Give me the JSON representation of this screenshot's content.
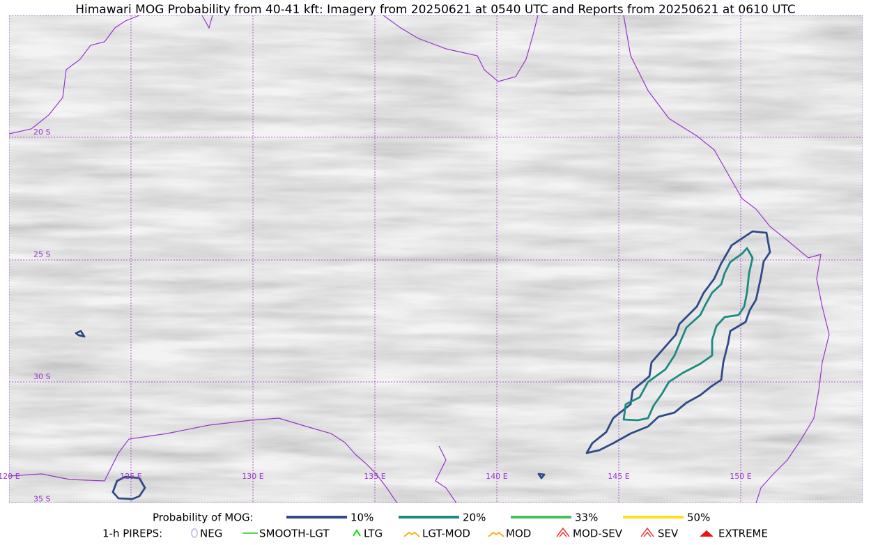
{
  "title": "Himawari MOG Probability from 40-41 kft: Imagery from 20250621 at 0540 UTC and Reports from 20250621 at 0610 UTC",
  "map": {
    "lat_labels": [
      "20 S",
      "25 S",
      "30 S",
      "35 S"
    ],
    "lon_labels": [
      "120 E",
      "125 E",
      "130 E",
      "135 E",
      "140 E",
      "145 E",
      "150 E"
    ]
  },
  "mog_legend": {
    "label": "Probability of MOG:",
    "items": [
      {
        "label": "10%",
        "color": "#2e4a87"
      },
      {
        "label": "20%",
        "color": "#1b8a80"
      },
      {
        "label": "33%",
        "color": "#45c05a"
      },
      {
        "label": "50%",
        "color": "#ffe016"
      }
    ]
  },
  "pirep_legend": {
    "label": "1-h PIREPS:",
    "items": [
      {
        "label": "NEG",
        "color": "#c4c4f2"
      },
      {
        "label": "SMOOTH-LGT",
        "color": "#22cc22"
      },
      {
        "label": "LTG",
        "color": "#11dd11"
      },
      {
        "label": "LGT-MOD",
        "color": "#f5b21a"
      },
      {
        "label": "MOD",
        "color": "#f5b21a"
      },
      {
        "label": "MOD-SEV",
        "color": "#ee3333"
      },
      {
        "label": "SEV",
        "color": "#ee3333"
      },
      {
        "label": "EXTREME",
        "color": "#ee1111"
      }
    ]
  }
}
